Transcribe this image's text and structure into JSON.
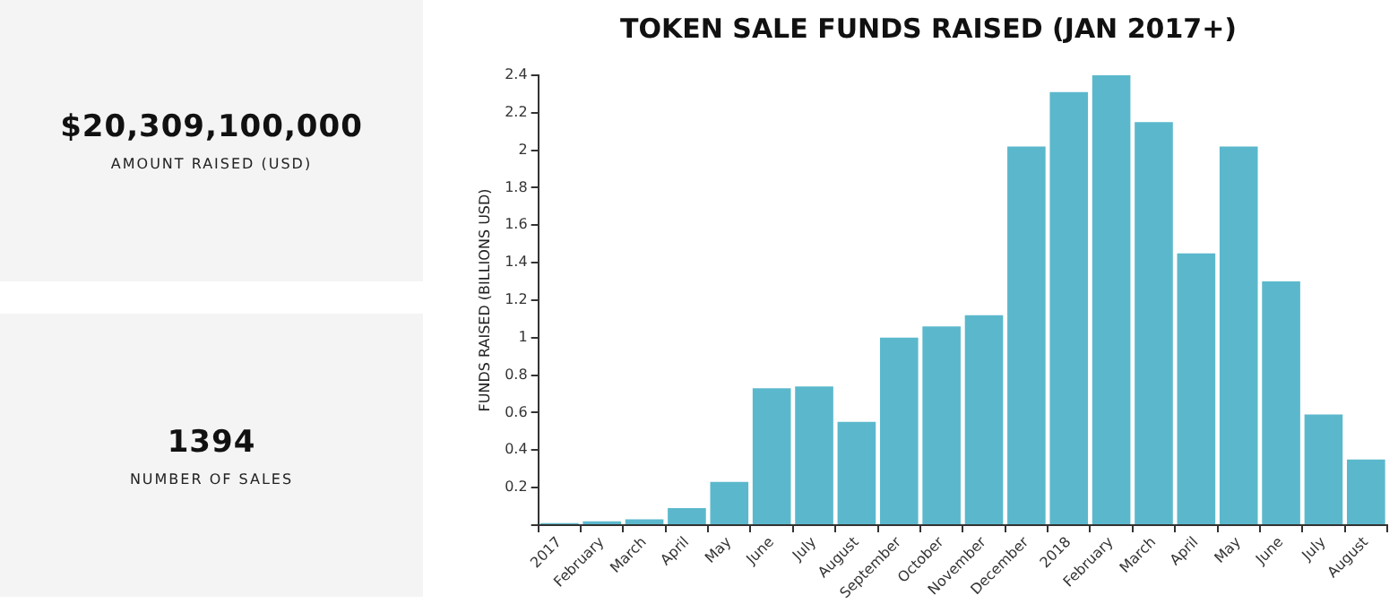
{
  "chart_data": [
    {
      "type": "other",
      "title": "$20,309,100,000",
      "subtitle": "AMOUNT RAISED (USD)"
    },
    {
      "type": "other",
      "title": "1394",
      "subtitle": "NUMBER OF SALES"
    },
    {
      "type": "bar",
      "title": "TOKEN SALE FUNDS RAISED (JAN 2017+)",
      "ylabel": "FUNDS RAISED (BILLIONS USD)",
      "categories": [
        "2017",
        "February",
        "March",
        "April",
        "May",
        "June",
        "July",
        "August",
        "September",
        "October",
        "November",
        "December",
        "2018",
        "February",
        "March",
        "April",
        "May",
        "June",
        "July",
        "August"
      ],
      "values": [
        0.01,
        0.02,
        0.03,
        0.09,
        0.23,
        0.73,
        0.74,
        0.55,
        1.0,
        1.06,
        1.12,
        2.02,
        2.31,
        2.4,
        2.15,
        1.45,
        2.02,
        1.3,
        0.59,
        0.35
      ],
      "color": "#5bb8cc",
      "ylim": [
        0,
        2.4
      ],
      "yticks": [
        {
          "value": 0,
          "label": null
        },
        0.2,
        0.4,
        0.6,
        0.8,
        1,
        1.2,
        1.4,
        1.6,
        1.8,
        2,
        2.2,
        2.4
      ],
      "grid": false,
      "legend": false
    }
  ]
}
